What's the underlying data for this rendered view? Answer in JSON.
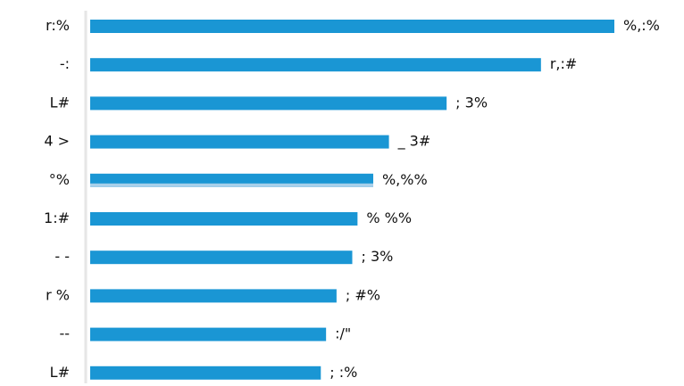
{
  "chart_data": {
    "type": "bar",
    "orientation": "horizontal",
    "title": "",
    "xlabel": "",
    "ylabel": "",
    "grid": false,
    "legend": "none",
    "colors": {
      "bar": "#1a96d4",
      "highlight": "#a8d0ea",
      "axis": "#e6e6e6",
      "text": "#111111"
    },
    "categories": [
      "r:%",
      "-:",
      "L#",
      "4 >",
      "°%",
      "1:#",
      "- -",
      "r %",
      "--",
      "L#"
    ],
    "values": [
      {
        "value": 100,
        "label": "%,:%"
      },
      {
        "value": 86,
        "label": "r,:#"
      },
      {
        "value": 68,
        "label": "; 3%"
      },
      {
        "value": 57,
        "label": "_ 3#"
      },
      {
        "value": 54,
        "label": "%,%%"
      },
      {
        "value": 51,
        "label": "% %%"
      },
      {
        "value": 50,
        "label": "; 3%"
      },
      {
        "value": 47,
        "label": "; #%"
      },
      {
        "value": 45,
        "label": ":/\""
      },
      {
        "value": 44,
        "label": "; :%"
      }
    ]
  }
}
